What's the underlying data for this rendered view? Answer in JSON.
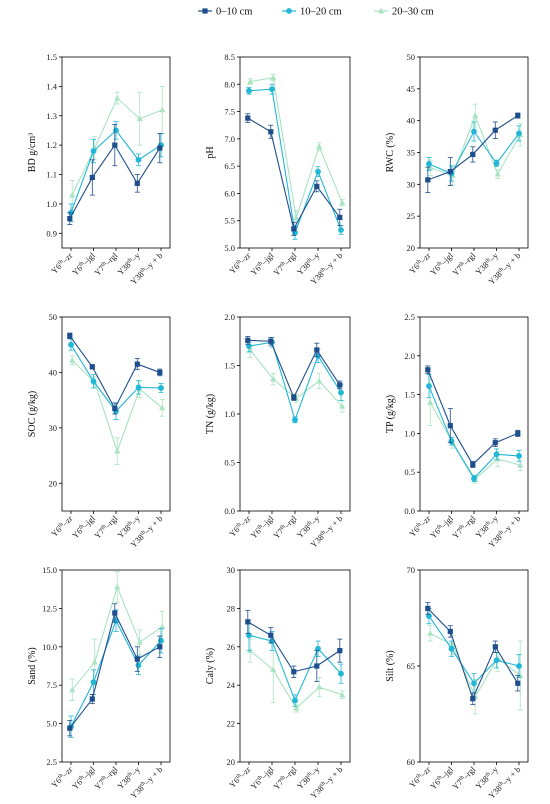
{
  "colors": {
    "s0": "#1f4e8c",
    "s1": "#22b7d6",
    "s2": "#a8e3c2"
  },
  "legend": [
    {
      "label": "0–10 cm",
      "marker": "square",
      "color": "#1f4e8c"
    },
    {
      "label": "10–20 cm",
      "marker": "circle",
      "color": "#22b7d6"
    },
    {
      "label": "20–30 cm",
      "marker": "triangle",
      "color": "#a8e3c2"
    }
  ],
  "chart_data": [
    {
      "type": "line",
      "ylabel": "BD g/cm³",
      "ylim": [
        0.85,
        1.5
      ],
      "yticks": [
        "0.9",
        "1.0",
        "1.1",
        "1.2",
        "1.3",
        "1.4",
        "1.5"
      ],
      "categories": [
        "Y6th–zr",
        "Y6th–jgl",
        "Y7th–rgl",
        "Y38th–y",
        "Y38th–y + b"
      ],
      "series": [
        {
          "name": "0–10 cm",
          "values": [
            0.95,
            1.09,
            1.2,
            1.07,
            1.19
          ],
          "errors": [
            0.02,
            0.06,
            0.07,
            0.03,
            0.05
          ]
        },
        {
          "name": "10–20 cm",
          "values": [
            0.97,
            1.18,
            1.25,
            1.15,
            1.2
          ],
          "errors": [
            0.03,
            0.04,
            0.03,
            0.02,
            0.04
          ]
        },
        {
          "name": "20–30 cm",
          "values": [
            1.03,
            1.19,
            1.36,
            1.29,
            1.32
          ],
          "errors": [
            0.05,
            0.04,
            0.02,
            0.09,
            0.08
          ]
        }
      ]
    },
    {
      "type": "line",
      "ylabel": "pH",
      "ylim": [
        5.0,
        8.5
      ],
      "yticks": [
        "5.0",
        "5.5",
        "6.0",
        "6.5",
        "7.0",
        "7.5",
        "8.0",
        "8.5"
      ],
      "categories": [
        "Y6th–zr",
        "Y6th–jgl",
        "Y7th–rgl",
        "Y38th–y",
        "Y38th–y + b"
      ],
      "series": [
        {
          "name": "0–10 cm",
          "values": [
            7.38,
            7.13,
            5.35,
            6.13,
            5.56
          ],
          "errors": [
            0.08,
            0.12,
            0.12,
            0.1,
            0.15
          ]
        },
        {
          "name": "10–20 cm",
          "values": [
            7.88,
            7.91,
            5.28,
            6.4,
            5.33
          ],
          "errors": [
            0.06,
            0.09,
            0.12,
            0.09,
            0.08
          ]
        },
        {
          "name": "20–30 cm",
          "values": [
            8.05,
            8.12,
            5.55,
            6.86,
            5.83
          ],
          "errors": [
            0.05,
            0.06,
            0.14,
            0.07,
            0.06
          ]
        }
      ]
    },
    {
      "type": "line",
      "ylabel": "RWC (%)",
      "ylim": [
        20,
        50
      ],
      "yticks": [
        "20",
        "25",
        "30",
        "35",
        "40",
        "45",
        "50"
      ],
      "categories": [
        "Y6th–zr",
        "Y6th–jgl",
        "Y7th–rgl",
        "Y38th–y",
        "Y38th–y + b"
      ],
      "series": [
        {
          "name": "0–10 cm",
          "values": [
            30.7,
            32.0,
            34.7,
            38.5,
            40.8
          ],
          "errors": [
            2.0,
            2.2,
            1.2,
            1.3,
            0.4
          ]
        },
        {
          "name": "10–20 cm",
          "values": [
            33.2,
            31.7,
            38.3,
            33.3,
            38.0
          ],
          "errors": [
            1.0,
            1.2,
            1.5,
            0.5,
            1.2
          ]
        },
        {
          "name": "20–30 cm",
          "values": [
            32.6,
            31.4,
            40.8,
            31.6,
            37.8
          ],
          "errors": [
            1.2,
            1.5,
            1.8,
            0.7,
            1.8
          ]
        }
      ]
    },
    {
      "type": "line",
      "ylabel": "SOC (g/kg)",
      "ylim": [
        15,
        50
      ],
      "yticks": [
        "20",
        "30",
        "40",
        "50"
      ],
      "categories": [
        "Y6th–zr",
        "Y6th–jgl",
        "Y7th–rgl",
        "Y38th–y",
        "Y38th–y + b"
      ],
      "series": [
        {
          "name": "0–10 cm",
          "values": [
            46.6,
            41.0,
            33.5,
            41.5,
            40.0
          ],
          "errors": [
            0.5,
            0.4,
            1.0,
            1.0,
            0.6
          ]
        },
        {
          "name": "10–20 cm",
          "values": [
            45.0,
            38.4,
            33.0,
            37.3,
            37.2
          ],
          "errors": [
            1.0,
            1.2,
            1.5,
            1.2,
            0.8
          ]
        },
        {
          "name": "20–30 cm",
          "values": [
            42.2,
            38.2,
            25.8,
            37.0,
            33.6
          ],
          "errors": [
            0.8,
            1.0,
            2.4,
            1.5,
            1.5
          ]
        }
      ]
    },
    {
      "type": "line",
      "ylabel": "TN (g/kg)",
      "ylim": [
        0,
        2.0
      ],
      "yticks": [
        "0.0",
        "0.5",
        "1.0",
        "1.5",
        "2.0"
      ],
      "categories": [
        "Y6th–zr",
        "Y6th–jgl",
        "Y7th–rgl",
        "Y38th–y",
        "Y38th–y + b"
      ],
      "series": [
        {
          "name": "0–10 cm",
          "values": [
            1.76,
            1.75,
            1.17,
            1.66,
            1.3
          ],
          "errors": [
            0.04,
            0.04,
            0.03,
            0.07,
            0.04
          ]
        },
        {
          "name": "10–20 cm",
          "values": [
            1.7,
            1.74,
            0.94,
            1.6,
            1.22
          ],
          "errors": [
            0.06,
            0.05,
            0.03,
            0.07,
            0.08
          ]
        },
        {
          "name": "20–30 cm",
          "values": [
            1.66,
            1.36,
            1.16,
            1.34,
            1.08
          ],
          "errors": [
            0.08,
            0.06,
            0.04,
            0.08,
            0.06
          ]
        }
      ]
    },
    {
      "type": "line",
      "ylabel": "TP (g/kg)",
      "ylim": [
        0,
        2.5
      ],
      "yticks": [
        "0.0",
        "0.5",
        "1.0",
        "1.5",
        "2.0",
        "2.5"
      ],
      "categories": [
        "Y6th–zr",
        "Y6th–jgl",
        "Y7th–rgl",
        "Y38th–y",
        "Y38th–y + b"
      ],
      "series": [
        {
          "name": "0–10 cm",
          "values": [
            1.82,
            1.1,
            0.6,
            0.88,
            1.0
          ],
          "errors": [
            0.05,
            0.22,
            0.04,
            0.05,
            0.04
          ]
        },
        {
          "name": "10–20 cm",
          "values": [
            1.61,
            0.9,
            0.42,
            0.73,
            0.71
          ],
          "errors": [
            0.15,
            0.05,
            0.04,
            0.07,
            0.07
          ]
        },
        {
          "name": "20–30 cm",
          "values": [
            1.4,
            0.88,
            0.41,
            0.67,
            0.59
          ],
          "errors": [
            0.3,
            0.07,
            0.05,
            0.1,
            0.07
          ]
        }
      ]
    },
    {
      "type": "line",
      "ylabel": "Sand (%)",
      "ylim": [
        2.5,
        15.0
      ],
      "yticks": [
        "2.5",
        "5.0",
        "7.5",
        "10.0",
        "12.5",
        "15.0"
      ],
      "categories": [
        "Y6th–zr",
        "Y6th–jgl",
        "Y7th–rgl",
        "Y38th–y",
        "Y38th–y + b"
      ],
      "series": [
        {
          "name": "0–10 cm",
          "values": [
            4.7,
            6.6,
            12.2,
            9.2,
            10.0
          ],
          "errors": [
            0.5,
            0.3,
            0.6,
            0.8,
            0.7
          ]
        },
        {
          "name": "10–20 cm",
          "values": [
            4.8,
            7.7,
            11.7,
            8.8,
            10.4
          ],
          "errors": [
            0.7,
            0.8,
            0.7,
            0.6,
            0.8
          ]
        },
        {
          "name": "20–30 cm",
          "values": [
            7.2,
            9.0,
            13.9,
            10.3,
            11.3
          ],
          "errors": [
            0.7,
            1.5,
            1.0,
            0.8,
            1.0
          ]
        }
      ]
    },
    {
      "type": "line",
      "ylabel": "Caly (%)",
      "ylim": [
        20,
        30
      ],
      "yticks": [
        "20",
        "22",
        "24",
        "26",
        "28",
        "30"
      ],
      "categories": [
        "Y6th–zr",
        "Y6th–jgl",
        "Y7th–rgl",
        "Y38th–y",
        "Y38th–y + b"
      ],
      "series": [
        {
          "name": "0–10 cm",
          "values": [
            27.3,
            26.6,
            24.7,
            25.0,
            25.8
          ],
          "errors": [
            0.6,
            0.4,
            0.3,
            0.8,
            0.6
          ]
        },
        {
          "name": "10–20 cm",
          "values": [
            26.6,
            26.3,
            23.2,
            25.9,
            24.6
          ],
          "errors": [
            0.8,
            0.5,
            0.3,
            0.4,
            0.5
          ]
        },
        {
          "name": "20–30 cm",
          "values": [
            25.8,
            24.8,
            22.8,
            23.9,
            23.5
          ],
          "errors": [
            0.6,
            1.7,
            0.2,
            0.5,
            0.2
          ]
        }
      ]
    },
    {
      "type": "line",
      "ylabel": "Silt (%)",
      "ylim": [
        60,
        70
      ],
      "yticks": [
        "60",
        "65",
        "70"
      ],
      "categories": [
        "Y6th–zr",
        "Y6th–jgl",
        "Y7th–rgl",
        "Y38th–y",
        "Y38th–y + b"
      ],
      "series": [
        {
          "name": "0–10 cm",
          "values": [
            68.0,
            66.8,
            63.3,
            66.0,
            64.1
          ],
          "errors": [
            0.3,
            0.3,
            0.3,
            0.3,
            0.4
          ]
        },
        {
          "name": "10–20 cm",
          "values": [
            67.6,
            65.9,
            64.1,
            65.3,
            65.0
          ],
          "errors": [
            0.4,
            0.4,
            0.5,
            0.4,
            0.6
          ]
        },
        {
          "name": "20–30 cm",
          "values": [
            66.7,
            66.1,
            63.4,
            65.4,
            64.5
          ],
          "errors": [
            0.4,
            0.5,
            0.9,
            0.7,
            1.8
          ]
        }
      ]
    }
  ]
}
